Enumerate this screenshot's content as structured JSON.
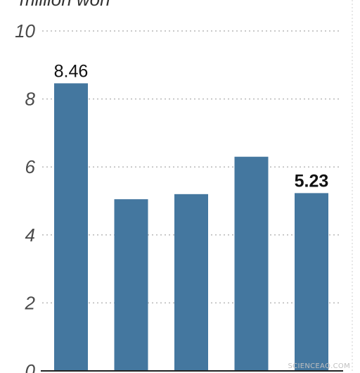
{
  "chart_data": {
    "type": "bar",
    "ylabel": "million won",
    "ylim": [
      0,
      10
    ],
    "yticks": [
      0,
      2,
      4,
      6,
      8,
      10
    ],
    "grid": true,
    "categories": [
      "",
      "",
      "",
      "",
      ""
    ],
    "values": [
      8.46,
      5.05,
      5.2,
      6.3,
      5.23
    ],
    "data_labels": [
      "8.46",
      "",
      "",
      "",
      "5.23"
    ],
    "bar_color": "#44779f"
  },
  "watermark": "SCIENCEAQ.COM"
}
